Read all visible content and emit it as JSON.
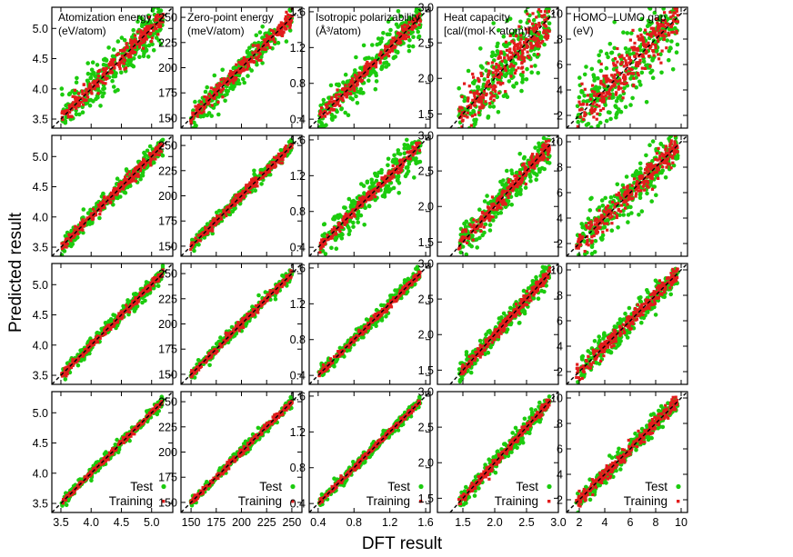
{
  "figure": {
    "ylabel": "Predicted result",
    "xlabel": "DFT result",
    "legend": {
      "test": "Test",
      "training": "Training"
    },
    "colors": {
      "test": "#1ccb0e",
      "training": "#e21c1c",
      "diagonal": "#000000",
      "frame": "#000000"
    }
  },
  "chart_data": [
    {
      "type": "scatter",
      "row_count": 4,
      "property": "Atomization energy",
      "unit": "(eV/atom)",
      "xlim": [
        3.35,
        5.35
      ],
      "ylim": [
        3.35,
        5.35
      ],
      "x_ticks": [
        "3.5",
        "4.0",
        "4.5",
        "5.0"
      ],
      "y_ticks": [
        "3.5",
        "4.0",
        "4.5",
        "5.0"
      ],
      "y_tick_values": [
        3.5,
        4.0,
        4.5,
        5.0
      ],
      "x_tick_values": [
        3.5,
        4.0,
        4.5,
        5.0
      ],
      "test_spread_by_row": [
        0.18,
        0.08,
        0.06,
        0.05
      ],
      "training_spread_by_row": [
        0.08,
        0.05,
        0.03,
        0.02
      ],
      "series": [
        {
          "name": "Test"
        },
        {
          "name": "Training"
        }
      ]
    },
    {
      "type": "scatter",
      "row_count": 4,
      "property": "Zero-point energy",
      "unit": "(meV/atom)",
      "xlim": [
        140,
        260
      ],
      "ylim": [
        140,
        260
      ],
      "x_ticks": [
        "150",
        "175",
        "200",
        "225",
        "250"
      ],
      "y_ticks": [
        "150",
        "175",
        "200",
        "225",
        "250"
      ],
      "y_tick_values": [
        150,
        175,
        200,
        225,
        250
      ],
      "x_tick_values": [
        150,
        175,
        200,
        225,
        250
      ],
      "test_spread_by_row": [
        7,
        3.5,
        3,
        2.5
      ],
      "training_spread_by_row": [
        4,
        2.5,
        2,
        1.5
      ],
      "series": [
        {
          "name": "Test"
        },
        {
          "name": "Training"
        }
      ]
    },
    {
      "type": "scatter",
      "row_count": 4,
      "property": "Isotropic polarizability",
      "unit": "(Å³/atom)",
      "xlim": [
        0.3,
        1.65
      ],
      "ylim": [
        0.3,
        1.65
      ],
      "x_ticks": [
        "0.4",
        "0.8",
        "1.2",
        "1.6"
      ],
      "y_ticks": [
        "0.4",
        "0.8",
        "1.2",
        "1.6"
      ],
      "y_tick_values": [
        0.4,
        0.8,
        1.2,
        1.6
      ],
      "x_tick_values": [
        0.4,
        0.8,
        1.2,
        1.6
      ],
      "test_spread_by_row": [
        0.12,
        0.1,
        0.04,
        0.03
      ],
      "training_spread_by_row": [
        0.04,
        0.03,
        0.02,
        0.015
      ],
      "series": [
        {
          "name": "Test"
        },
        {
          "name": "Training"
        }
      ]
    },
    {
      "type": "scatter",
      "row_count": 4,
      "property": "Heat capacity",
      "unit": "[cal/(mol·K·atom)]",
      "xlim": [
        1.1,
        3.0
      ],
      "ylim": [
        1.3,
        3.0
      ],
      "x_ticks": [
        "1.5",
        "2.0",
        "2.5",
        "3.0"
      ],
      "y_ticks": [
        "1.5",
        "2.0",
        "2.5",
        "3.0"
      ],
      "y_tick_values": [
        1.5,
        2.0,
        2.5,
        3.0
      ],
      "x_tick_values": [
        1.5,
        2.0,
        2.5,
        3.0
      ],
      "test_spread_by_row": [
        0.25,
        0.12,
        0.08,
        0.06
      ],
      "training_spread_by_row": [
        0.15,
        0.06,
        0.04,
        0.03
      ],
      "series": [
        {
          "name": "Test"
        },
        {
          "name": "Training"
        }
      ]
    },
    {
      "type": "scatter",
      "row_count": 4,
      "property": "HOMO−LUMO gap",
      "unit": "(eV)",
      "xlim": [
        1.0,
        10.5
      ],
      "ylim": [
        1.0,
        10.5
      ],
      "x_ticks": [
        "2",
        "4",
        "6",
        "8",
        "10"
      ],
      "y_ticks": [
        "2",
        "4",
        "6",
        "8",
        "10"
      ],
      "y_tick_values": [
        2,
        4,
        6,
        8,
        10
      ],
      "x_tick_values": [
        2,
        4,
        6,
        8,
        10
      ],
      "test_spread_by_row": [
        1.6,
        0.9,
        0.5,
        0.4
      ],
      "training_spread_by_row": [
        0.9,
        0.5,
        0.3,
        0.25
      ],
      "series": [
        {
          "name": "Test"
        },
        {
          "name": "Training"
        }
      ]
    }
  ]
}
